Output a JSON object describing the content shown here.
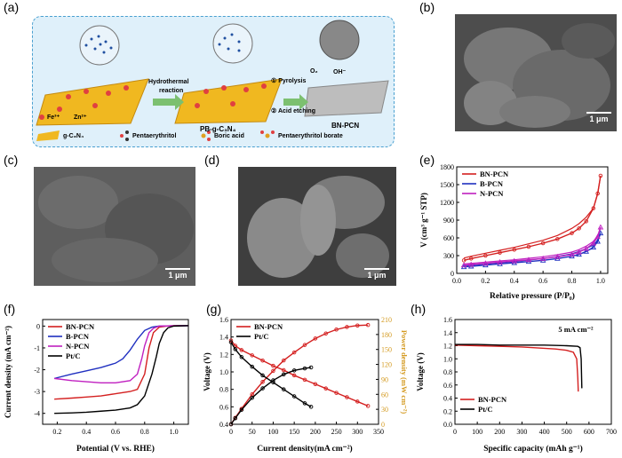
{
  "panels": {
    "a": "(a)",
    "b": "(b)",
    "c": "(c)",
    "d": "(d)",
    "e": "(e)",
    "f": "(f)",
    "g": "(g)",
    "h": "(h)"
  },
  "scheme": {
    "fe": "Fe³⁺",
    "zn": "Zn²⁺",
    "step1_a": "Hydrothermal",
    "step1_b": "reaction",
    "step2_a": "① Pyrolysis",
    "step2_b": "② Acid etching",
    "product1": "PB-g-C₃N₄",
    "product2": "BN-PCN",
    "o2": "O₂",
    "oh": "OH⁻",
    "legend_gcn": "g-C₃N₄",
    "legend_pent": "Pentaerythritol",
    "legend_boric": "Boric acid",
    "legend_borate": "Pentaerythritol borate"
  },
  "scalebars": {
    "b": "1 μm",
    "c": "1 μm",
    "d": "1 μm"
  },
  "chart_data": [
    {
      "id": "e",
      "type": "line",
      "xlabel": "Relative pressure (P/P₀)",
      "ylabel": "V (cm³ g⁻¹ STP)",
      "xlim": [
        0,
        1.05
      ],
      "ylim": [
        0,
        1800
      ],
      "xticks": [
        "0.0",
        "0.2",
        "0.4",
        "0.6",
        "0.8",
        "1.0"
      ],
      "yticks": [
        "0",
        "300",
        "600",
        "900",
        "1200",
        "1500",
        "1800"
      ],
      "legend_position": "top-left",
      "series": [
        {
          "name": "BN-PCN",
          "color": "#d42020",
          "marker": "circle",
          "x": [
            0.05,
            0.1,
            0.2,
            0.3,
            0.4,
            0.5,
            0.6,
            0.7,
            0.8,
            0.85,
            0.9,
            0.95,
            0.98,
            1.0
          ],
          "y": [
            220,
            250,
            300,
            350,
            400,
            450,
            510,
            580,
            680,
            760,
            880,
            1100,
            1350,
            1650
          ],
          "y2": [
            260,
            290,
            340,
            390,
            440,
            500,
            560,
            640,
            760,
            840,
            950,
            1100,
            1350,
            1650
          ]
        },
        {
          "name": "B-PCN",
          "color": "#2030c0",
          "marker": "triangle",
          "x": [
            0.05,
            0.1,
            0.2,
            0.3,
            0.4,
            0.5,
            0.6,
            0.7,
            0.8,
            0.85,
            0.9,
            0.95,
            0.98,
            1.0
          ],
          "y": [
            110,
            120,
            140,
            160,
            180,
            200,
            220,
            250,
            290,
            320,
            370,
            440,
            540,
            680
          ],
          "y2": [
            130,
            140,
            160,
            180,
            200,
            225,
            250,
            285,
            330,
            370,
            420,
            480,
            560,
            680
          ]
        },
        {
          "name": "N-PCN",
          "color": "#c020c0",
          "marker": "triangle",
          "x": [
            0.05,
            0.1,
            0.2,
            0.3,
            0.4,
            0.5,
            0.6,
            0.7,
            0.8,
            0.85,
            0.9,
            0.95,
            0.98,
            1.0
          ],
          "y": [
            140,
            150,
            170,
            190,
            210,
            230,
            250,
            280,
            320,
            360,
            420,
            510,
            620,
            780
          ],
          "y2": [
            160,
            170,
            190,
            210,
            230,
            255,
            280,
            315,
            360,
            400,
            460,
            540,
            640,
            780
          ]
        }
      ]
    },
    {
      "id": "f",
      "type": "line",
      "xlabel": "Potential (V vs. RHE)",
      "ylabel": "Current density (mA cm⁻²)",
      "xlim": [
        0.1,
        1.1
      ],
      "ylim": [
        -4.5,
        0.3
      ],
      "xticks": [
        "0.2",
        "0.4",
        "0.6",
        "0.8",
        "1.0"
      ],
      "yticks": [
        "-4",
        "-3",
        "-2",
        "-1",
        "0"
      ],
      "legend_position": "top-left",
      "series": [
        {
          "name": "BN-PCN",
          "color": "#d42020",
          "x": [
            0.18,
            0.3,
            0.4,
            0.5,
            0.6,
            0.7,
            0.75,
            0.8,
            0.83,
            0.86,
            0.9,
            0.95,
            1.0,
            1.1
          ],
          "y": [
            -3.35,
            -3.3,
            -3.25,
            -3.2,
            -3.1,
            -3.0,
            -2.9,
            -2.2,
            -1.0,
            -0.3,
            -0.05,
            0,
            0.02,
            0.03
          ]
        },
        {
          "name": "B-PCN",
          "color": "#2030c0",
          "x": [
            0.18,
            0.3,
            0.4,
            0.5,
            0.6,
            0.65,
            0.7,
            0.75,
            0.8,
            0.85,
            0.9,
            1.0,
            1.1
          ],
          "y": [
            -2.4,
            -2.2,
            -2.05,
            -1.9,
            -1.7,
            -1.5,
            -1.1,
            -0.6,
            -0.2,
            -0.05,
            0,
            0.01,
            0.02
          ]
        },
        {
          "name": "N-PCN",
          "color": "#c020c0",
          "x": [
            0.18,
            0.3,
            0.4,
            0.5,
            0.6,
            0.7,
            0.75,
            0.78,
            0.8,
            0.83,
            0.86,
            0.9,
            1.0,
            1.1
          ],
          "y": [
            -2.4,
            -2.5,
            -2.55,
            -2.6,
            -2.6,
            -2.5,
            -2.2,
            -1.5,
            -0.9,
            -0.3,
            -0.1,
            0,
            0.01,
            0.02
          ]
        },
        {
          "name": "Pt/C",
          "color": "#000000",
          "x": [
            0.18,
            0.3,
            0.4,
            0.5,
            0.6,
            0.7,
            0.75,
            0.8,
            0.85,
            0.88,
            0.9,
            0.93,
            0.96,
            1.0,
            1.1
          ],
          "y": [
            -4.0,
            -3.98,
            -3.95,
            -3.9,
            -3.85,
            -3.75,
            -3.6,
            -3.2,
            -2.2,
            -1.4,
            -0.8,
            -0.3,
            -0.08,
            0,
            0.02
          ]
        }
      ]
    },
    {
      "id": "g",
      "type": "line",
      "xlabel": "Current density(mA cm⁻²)",
      "ylabel": "Voltage (V)",
      "ylabel_right": "Power density (mW cm⁻²)",
      "xlim": [
        0,
        350
      ],
      "ylim": [
        0.4,
        1.6
      ],
      "y2lim": [
        0,
        210
      ],
      "xticks": [
        "0",
        "50",
        "100",
        "150",
        "200",
        "250",
        "300",
        "350"
      ],
      "yticks": [
        "0.4",
        "0.6",
        "0.8",
        "1.0",
        "1.2",
        "1.4",
        "1.6"
      ],
      "y2ticks": [
        "0",
        "30",
        "60",
        "90",
        "120",
        "150",
        "180",
        "210"
      ],
      "legend_position": "top-left",
      "series": [
        {
          "name": "BN-PCN",
          "color": "#d42020",
          "kind": "voltage",
          "x": [
            0,
            10,
            25,
            50,
            75,
            100,
            125,
            150,
            175,
            200,
            225,
            250,
            275,
            300,
            325
          ],
          "y": [
            1.36,
            1.3,
            1.25,
            1.19,
            1.13,
            1.07,
            1.02,
            0.96,
            0.91,
            0.86,
            0.81,
            0.76,
            0.71,
            0.66,
            0.61
          ]
        },
        {
          "name": "BN-PCN",
          "color": "#d42020",
          "kind": "power",
          "x": [
            0,
            10,
            25,
            50,
            75,
            100,
            125,
            150,
            175,
            200,
            225,
            250,
            275,
            300,
            325
          ],
          "y": [
            0,
            13,
            31,
            60,
            85,
            107,
            128,
            144,
            159,
            172,
            182,
            190,
            195,
            198,
            199
          ]
        },
        {
          "name": "Pt/C",
          "color": "#000000",
          "kind": "voltage",
          "x": [
            0,
            10,
            25,
            50,
            75,
            100,
            125,
            150,
            175,
            190
          ],
          "y": [
            1.34,
            1.26,
            1.17,
            1.06,
            0.96,
            0.88,
            0.8,
            0.72,
            0.64,
            0.6
          ]
        },
        {
          "name": "Pt/C",
          "color": "#000000",
          "kind": "power",
          "x": [
            0,
            10,
            25,
            50,
            75,
            100,
            125,
            150,
            175,
            190
          ],
          "y": [
            0,
            12,
            29,
            53,
            72,
            88,
            100,
            108,
            112,
            114
          ]
        }
      ]
    },
    {
      "id": "h",
      "type": "line",
      "xlabel": "Specific capacity  (mAh g⁻¹)",
      "ylabel": "Voltage (V)",
      "annotation": "5 mA cm⁻²",
      "xlim": [
        0,
        700
      ],
      "ylim": [
        0,
        1.6
      ],
      "xticks": [
        "0",
        "100",
        "200",
        "300",
        "400",
        "500",
        "600",
        "700"
      ],
      "yticks": [
        "0.0",
        "0.2",
        "0.4",
        "0.6",
        "0.8",
        "1.0",
        "1.2",
        "1.4",
        "1.6"
      ],
      "legend_position": "bottom-left",
      "series": [
        {
          "name": "BN-PCN",
          "color": "#d42020",
          "x": [
            0,
            100,
            200,
            300,
            400,
            450,
            500,
            530,
            545,
            550,
            552
          ],
          "y": [
            1.21,
            1.2,
            1.19,
            1.18,
            1.16,
            1.15,
            1.13,
            1.1,
            1.0,
            0.7,
            0.5
          ]
        },
        {
          "name": "Pt/C",
          "color": "#000000",
          "x": [
            0,
            100,
            200,
            300,
            400,
            500,
            550,
            560,
            565,
            568
          ],
          "y": [
            1.22,
            1.22,
            1.21,
            1.21,
            1.21,
            1.2,
            1.19,
            1.17,
            1.0,
            0.55
          ]
        }
      ]
    }
  ]
}
